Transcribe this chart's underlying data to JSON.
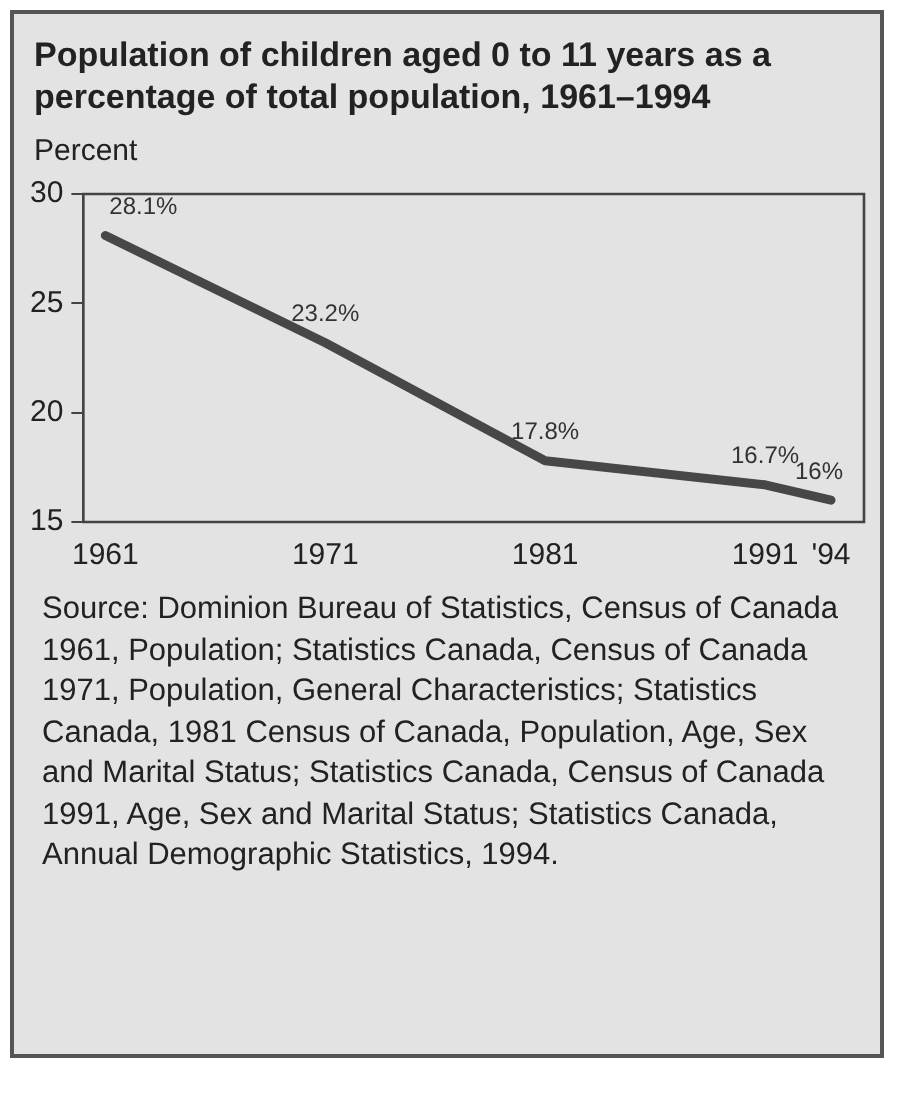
{
  "chart_data": {
    "type": "line",
    "title": "Population of children aged 0 to 11 years as a percentage of total population, 1961–1994",
    "ylabel": "Percent",
    "x": [
      1961,
      1971,
      1981,
      1991,
      1994
    ],
    "series": [
      {
        "color": "#474747",
        "values": [
          28.1,
          23.2,
          17.8,
          16.7,
          16
        ],
        "value_labels": [
          "28.1%",
          "23.2%",
          "17.8%",
          "16.7%",
          "16%"
        ]
      }
    ],
    "xlim": [
      1960,
      1995.5
    ],
    "xticks": [
      1961,
      1971,
      1981,
      1991,
      {
        "value": 1994,
        "label": "'94"
      }
    ],
    "ylim": [
      15,
      30
    ],
    "yticks": [
      15,
      20,
      25,
      30
    ],
    "grid": false,
    "legend": false,
    "marker": "none",
    "line_style": "solid",
    "annotations": [
      "Source: Dominion Bureau of Statistics, Census of Canada 1961, Population; Statistics Canada, Census of Canada 1971, Population, General Characteristics; Statistics Canada, 1981 Census of Canada, Population, Age, Sex and Marital Status; Statistics Canada, Census of Canada 1991, Age, Sex and Marital Status; Statistics Canada, Annual Demographic Statistics, 1994."
    ]
  }
}
